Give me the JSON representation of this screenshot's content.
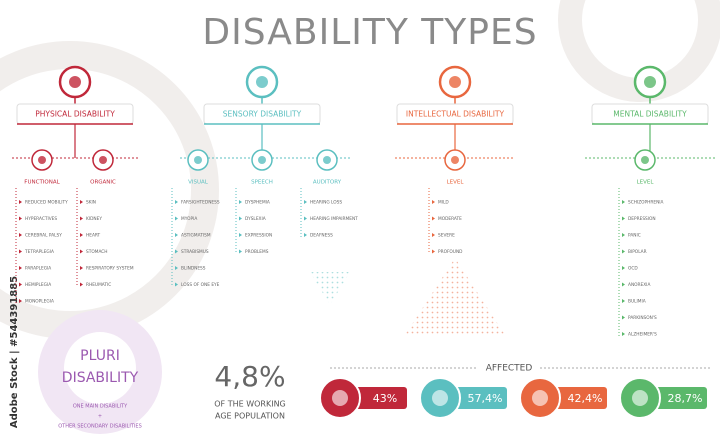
{
  "title": "DISABILITY TYPES",
  "categories": [
    {
      "name": "PHYSICAL DISABILITY",
      "color": "#c0283a",
      "groups": [
        {
          "label": "FUNCTIONAL",
          "items": [
            "REDUCED MOBILITY",
            "HYPERACTIVES",
            "CEREBRAL PALSY",
            "TETRAPLEGIA",
            "PARAPLEGIA",
            "HEMIPLEGIA",
            "MONOPLEGIA"
          ]
        },
        {
          "label": "ORGANIC",
          "items": [
            "SKIN",
            "KIDNEY",
            "HEART",
            "STOMACH",
            "RESPIRATORY SYSTEM",
            "RHEUMATIC"
          ]
        }
      ]
    },
    {
      "name": "SENSORY DISABILITY",
      "color": "#5bbfc0",
      "groups": [
        {
          "label": "VISUAL",
          "items": [
            "FARSIGHTEDNESS",
            "MYOPIA",
            "ASTIGMATISM",
            "STRABISMUS",
            "BLINDNESS",
            "LOSS OF ONE EYE"
          ]
        },
        {
          "label": "SPEECH",
          "items": [
            "DYSPHEMIA",
            "DYSLEXIA",
            "EXPRESSION",
            "PROBLEMS"
          ]
        },
        {
          "label": "AUDITORY",
          "items": [
            "HEARING LOSS",
            "HEARING IMPAIRMENT",
            "DEAFNESS"
          ]
        }
      ]
    },
    {
      "name": "INTELLECTUAL DISABILITY",
      "color": "#e8673f",
      "groups": [
        {
          "label": "LEVEL",
          "items": [
            "MILD",
            "MODERATE",
            "SEVERE",
            "PROFOUND"
          ]
        }
      ]
    },
    {
      "name": "MENTAL DISABILITY",
      "color": "#5bb86b",
      "groups": [
        {
          "label": "LEVEL",
          "items": [
            "SCHIZOPHRENIA",
            "DEPRESSION",
            "PANIC",
            "BIPOLAR",
            "OCD",
            "ANOREXIA",
            "BULIMIA",
            "PARKINSON'S",
            "ALZHEIMER'S"
          ]
        }
      ]
    }
  ],
  "pluri": {
    "title": [
      "PLURI",
      "DISABILITY"
    ],
    "color": "#9b59b0",
    "lines": [
      "ONE MAIN DISABILITY",
      "+",
      "OTHER SECONDARY DISABILITIES"
    ]
  },
  "stat": {
    "value": "4,8%",
    "caption": [
      "OF THE WORKING",
      "AGE POPULATION"
    ]
  },
  "affected": {
    "label": "AFFECTED",
    "values": [
      "43%",
      "57,4%",
      "42,4%",
      "28,7%"
    ]
  },
  "watermark": "Adobe Stock | #544391885"
}
